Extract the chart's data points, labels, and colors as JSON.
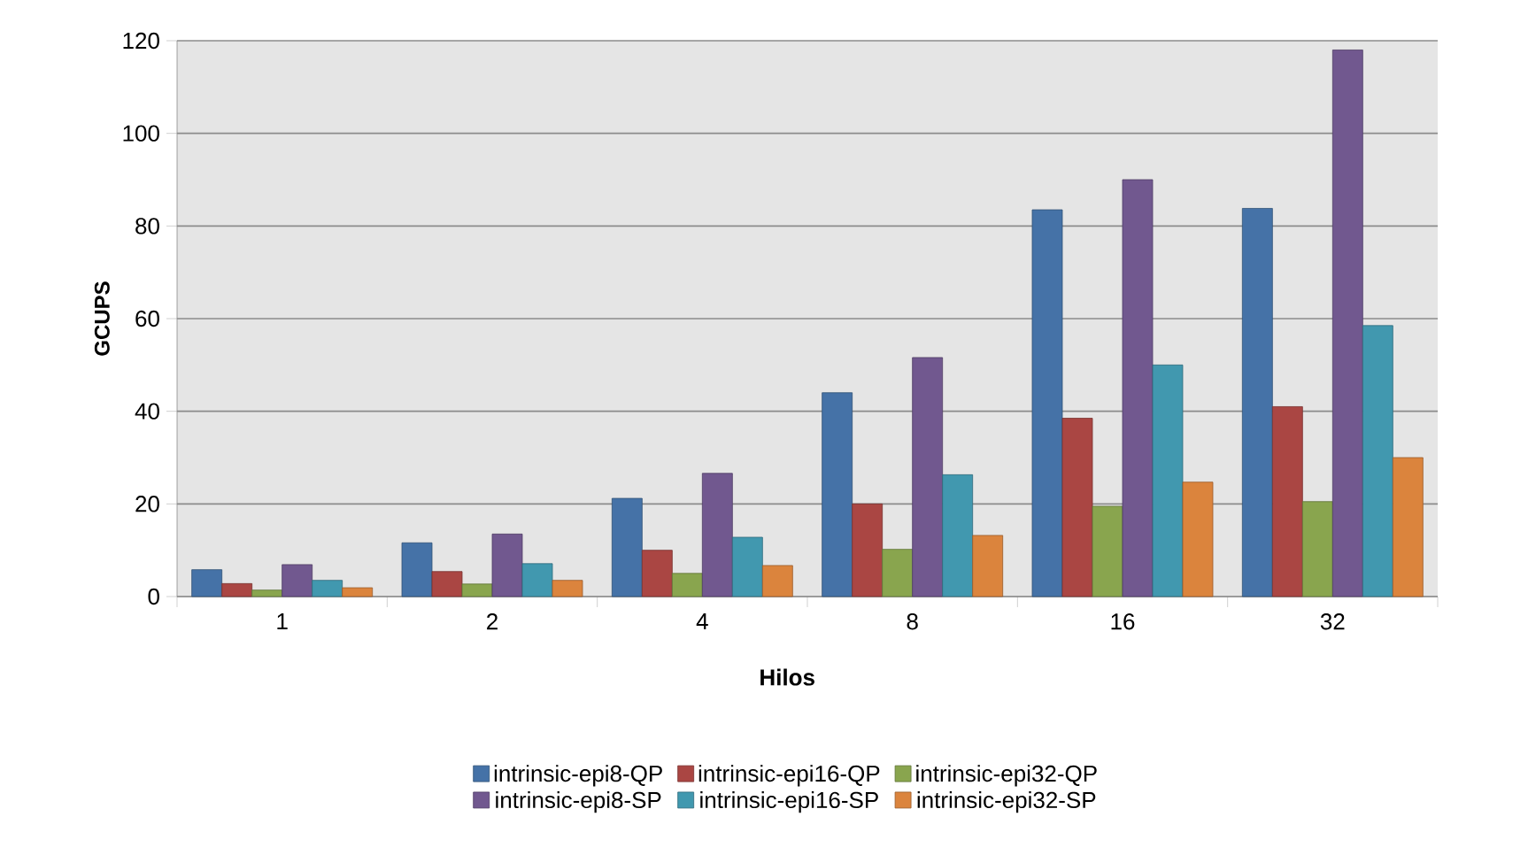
{
  "chart_data": {
    "type": "bar",
    "xlabel": "Hilos",
    "ylabel": "GCUPS",
    "categories": [
      "1",
      "2",
      "4",
      "8",
      "16",
      "32"
    ],
    "series": [
      {
        "name": "intrinsic-epi8-QP",
        "color": "#4572a7",
        "values": [
          5.8,
          11.6,
          21.2,
          44,
          83.5,
          83.8
        ]
      },
      {
        "name": "intrinsic-epi16-QP",
        "color": "#aa4643",
        "values": [
          2.8,
          5.4,
          10,
          20,
          38.5,
          41
        ]
      },
      {
        "name": "intrinsic-epi32-QP",
        "color": "#89a54e",
        "values": [
          1.4,
          2.7,
          5,
          10.2,
          19.5,
          20.5
        ]
      },
      {
        "name": "intrinsic-epi8-SP",
        "color": "#71588f",
        "values": [
          6.9,
          13.5,
          26.6,
          51.6,
          90,
          118
        ]
      },
      {
        "name": "intrinsic-epi16-SP",
        "color": "#4198af",
        "values": [
          3.5,
          7.1,
          12.8,
          26.3,
          50,
          58.5
        ]
      },
      {
        "name": "intrinsic-epi32-SP",
        "color": "#db843d",
        "values": [
          1.9,
          3.5,
          6.7,
          13.2,
          24.7,
          30
        ]
      }
    ],
    "ylim": [
      0,
      120
    ],
    "yticks": [
      0,
      20,
      40,
      60,
      80,
      100,
      120
    ],
    "grid": "y",
    "legend": "bottom"
  }
}
